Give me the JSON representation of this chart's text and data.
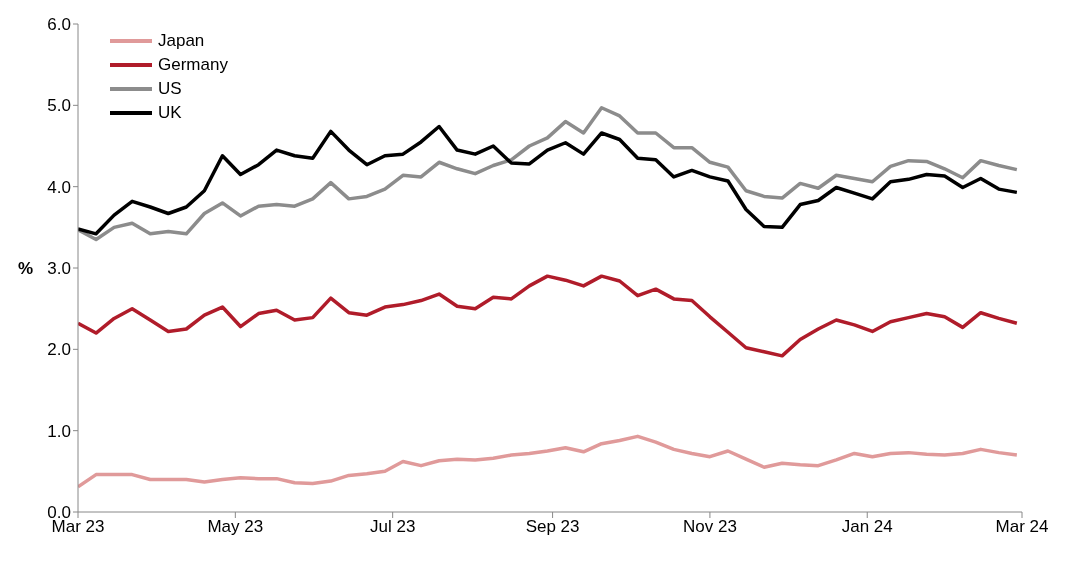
{
  "chart_data": {
    "type": "line",
    "ylabel": "%",
    "legend": "top left",
    "marker": "none",
    "line_style": "solid",
    "grid": false,
    "xlim": [
      "2023-03-01",
      "2024-03-01"
    ],
    "xticks": [
      {
        "value": "2023-03-01",
        "label": "Mar 23"
      },
      {
        "value": "2023-05-01",
        "label": "May 23"
      },
      {
        "value": "2023-07-01",
        "label": "Jul 23"
      },
      {
        "value": "2023-09-01",
        "label": "Sep 23"
      },
      {
        "value": "2023-11-01",
        "label": "Nov 23"
      },
      {
        "value": "2024-01-01",
        "label": "Jan 24"
      },
      {
        "value": "2024-03-01",
        "label": "Mar 24"
      }
    ],
    "ylim": [
      0,
      6
    ],
    "yticks": [
      {
        "value": 0,
        "label": "0.0"
      },
      {
        "value": 1,
        "label": "1.0"
      },
      {
        "value": 2,
        "label": "2.0"
      },
      {
        "value": 3,
        "label": "3.0"
      },
      {
        "value": 4,
        "label": "4.0"
      },
      {
        "value": 5,
        "label": "5.0"
      },
      {
        "value": 6,
        "label": "6.0"
      }
    ],
    "x": [
      "2023-03-01",
      "2023-03-08",
      "2023-03-15",
      "2023-03-22",
      "2023-03-29",
      "2023-04-05",
      "2023-04-12",
      "2023-04-19",
      "2023-04-26",
      "2023-05-03",
      "2023-05-10",
      "2023-05-17",
      "2023-05-24",
      "2023-05-31",
      "2023-06-07",
      "2023-06-14",
      "2023-06-21",
      "2023-06-28",
      "2023-07-05",
      "2023-07-12",
      "2023-07-19",
      "2023-07-26",
      "2023-08-02",
      "2023-08-09",
      "2023-08-16",
      "2023-08-23",
      "2023-08-30",
      "2023-09-06",
      "2023-09-13",
      "2023-09-20",
      "2023-09-27",
      "2023-10-04",
      "2023-10-11",
      "2023-10-18",
      "2023-10-25",
      "2023-11-01",
      "2023-11-08",
      "2023-11-15",
      "2023-11-22",
      "2023-11-29",
      "2023-12-06",
      "2023-12-13",
      "2023-12-20",
      "2023-12-27",
      "2024-01-03",
      "2024-01-10",
      "2024-01-17",
      "2024-01-24",
      "2024-01-31",
      "2024-02-07",
      "2024-02-14",
      "2024-02-21",
      "2024-02-28"
    ],
    "series": [
      {
        "name": "Japan",
        "color": "#e09a9a",
        "values": [
          0.31,
          0.46,
          0.46,
          0.46,
          0.4,
          0.4,
          0.4,
          0.37,
          0.4,
          0.42,
          0.41,
          0.41,
          0.36,
          0.35,
          0.38,
          0.45,
          0.47,
          0.5,
          0.62,
          0.57,
          0.63,
          0.65,
          0.64,
          0.66,
          0.7,
          0.72,
          0.75,
          0.79,
          0.74,
          0.84,
          0.88,
          0.93,
          0.86,
          0.77,
          0.72,
          0.68,
          0.75,
          0.65,
          0.55,
          0.6,
          0.58,
          0.57,
          0.64,
          0.72,
          0.68,
          0.72,
          0.73,
          0.71,
          0.7,
          0.72,
          0.77,
          0.73,
          0.7
        ]
      },
      {
        "name": "Germany",
        "color": "#b01c2a",
        "values": [
          2.32,
          2.2,
          2.38,
          2.5,
          2.36,
          2.22,
          2.25,
          2.42,
          2.52,
          2.28,
          2.44,
          2.48,
          2.36,
          2.39,
          2.63,
          2.45,
          2.42,
          2.52,
          2.55,
          2.6,
          2.68,
          2.53,
          2.5,
          2.64,
          2.62,
          2.78,
          2.9,
          2.85,
          2.78,
          2.9,
          2.84,
          2.66,
          2.74,
          2.62,
          2.6,
          2.4,
          2.21,
          2.02,
          1.97,
          1.92,
          2.12,
          2.25,
          2.36,
          2.3,
          2.22,
          2.34,
          2.39,
          2.44,
          2.4,
          2.27,
          2.45,
          2.38,
          2.32
        ]
      },
      {
        "name": "US",
        "color": "#8c8c8c",
        "values": [
          3.47,
          3.35,
          3.5,
          3.55,
          3.42,
          3.45,
          3.42,
          3.67,
          3.8,
          3.64,
          3.76,
          3.78,
          3.76,
          3.85,
          4.05,
          3.85,
          3.88,
          3.97,
          4.14,
          4.12,
          4.3,
          4.22,
          4.16,
          4.26,
          4.33,
          4.5,
          4.6,
          4.8,
          4.66,
          4.97,
          4.87,
          4.66,
          4.66,
          4.48,
          4.48,
          4.3,
          4.24,
          3.95,
          3.88,
          3.86,
          4.04,
          3.98,
          4.14,
          4.1,
          4.06,
          4.25,
          4.32,
          4.31,
          4.22,
          4.11,
          4.32,
          4.26,
          4.21
        ]
      },
      {
        "name": "UK",
        "color": "#000000",
        "values": [
          3.48,
          3.42,
          3.65,
          3.82,
          3.75,
          3.67,
          3.75,
          3.95,
          4.38,
          4.15,
          4.27,
          4.45,
          4.38,
          4.35,
          4.68,
          4.45,
          4.27,
          4.38,
          4.4,
          4.55,
          4.74,
          4.45,
          4.4,
          4.5,
          4.29,
          4.28,
          4.45,
          4.54,
          4.4,
          4.66,
          4.58,
          4.35,
          4.33,
          4.12,
          4.2,
          4.12,
          4.07,
          3.72,
          3.51,
          3.5,
          3.78,
          3.83,
          3.99,
          3.92,
          3.85,
          4.06,
          4.09,
          4.15,
          4.13,
          3.99,
          4.1,
          3.97,
          3.93
        ]
      }
    ]
  }
}
